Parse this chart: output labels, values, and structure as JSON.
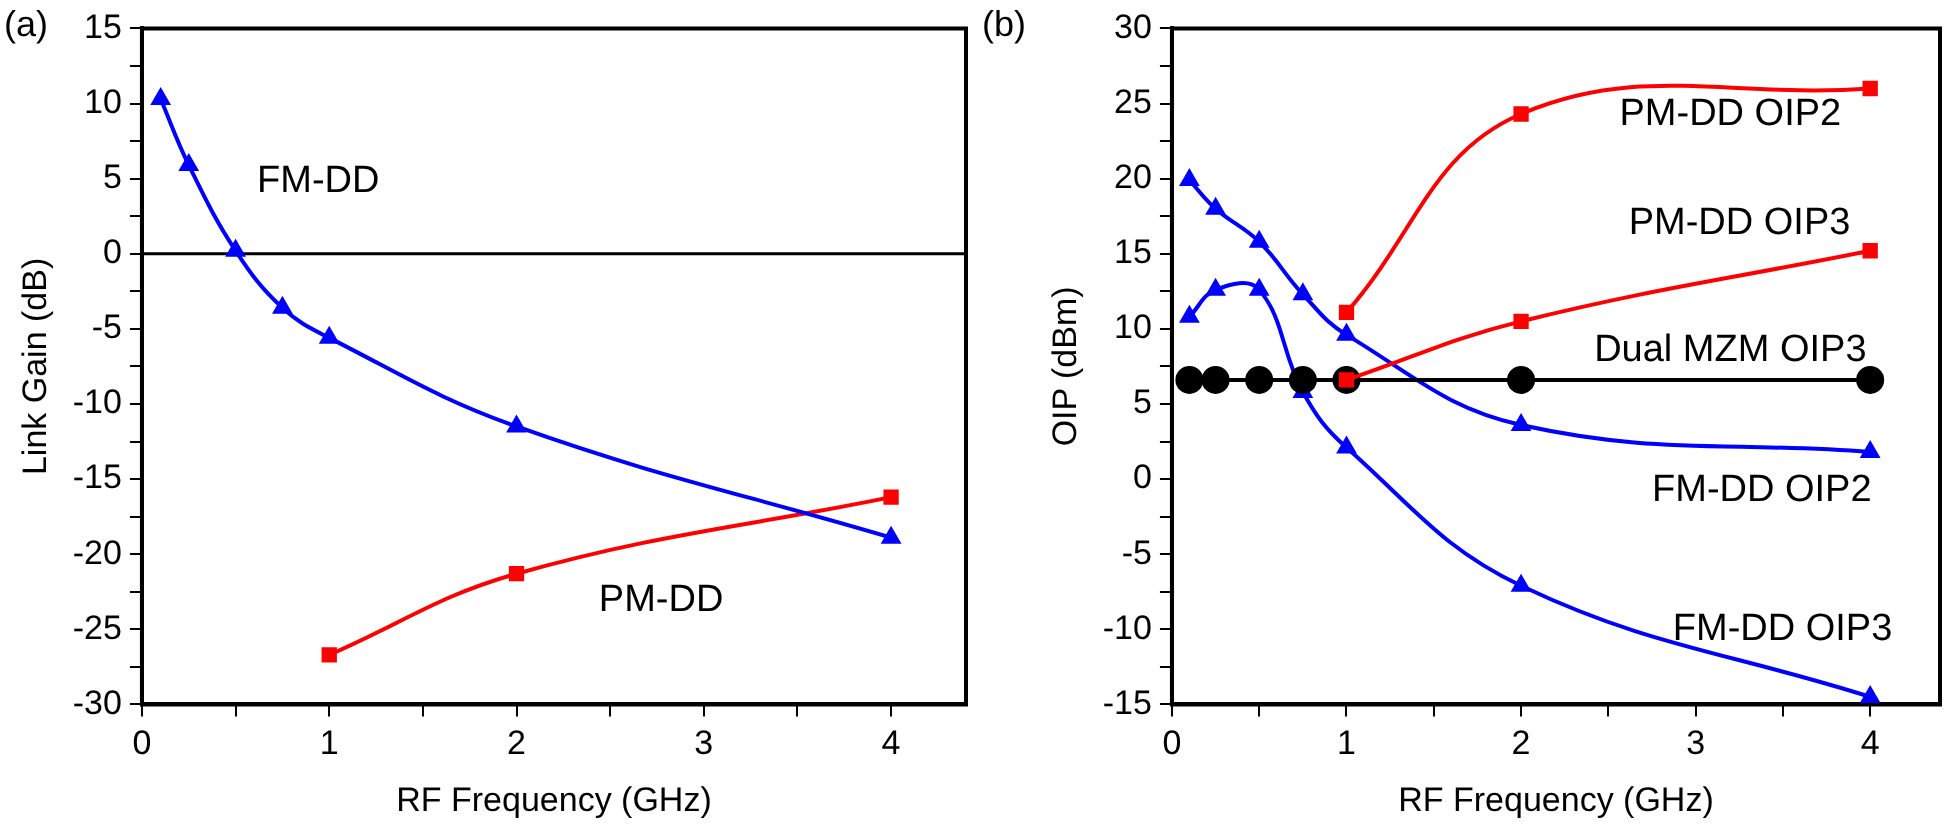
{
  "chart_data": [
    {
      "type": "line",
      "title": "(a)",
      "xlabel": "RF Frequency (GHz)",
      "ylabel": "Link Gain (dB)",
      "xlim": [
        0,
        4.4
      ],
      "xticks": [
        0,
        {
          "value": 0.5,
          "label": null
        },
        1,
        {
          "value": 1.5,
          "label": null
        },
        2,
        {
          "value": 2.5,
          "label": null
        },
        3,
        {
          "value": 3.5,
          "label": null
        },
        4
      ],
      "ylim": [
        -30,
        15
      ],
      "yticks": [
        -30,
        {
          "value": -27.5,
          "label": null
        },
        -25,
        {
          "value": -22.5,
          "label": null
        },
        -20,
        {
          "value": -17.5,
          "label": null
        },
        -15,
        {
          "value": -12.5,
          "label": null
        },
        -10,
        {
          "value": -7.5,
          "label": null
        },
        -5,
        {
          "value": -2.5,
          "label": null
        },
        0,
        {
          "value": 2.5,
          "label": null
        },
        5,
        {
          "value": 7.5,
          "label": null
        },
        10,
        {
          "value": 12.5,
          "label": null
        },
        15
      ],
      "legend": false,
      "series": [
        {
          "name": "FM-DD",
          "color": "#0000ff",
          "marker": "triangle",
          "x": [
            0.1,
            0.25,
            0.5,
            0.75,
            1,
            2,
            4
          ],
          "values": [
            10.3,
            5.9,
            0.2,
            -3.6,
            -5.6,
            -11.5,
            -18.9
          ]
        },
        {
          "name": "PM-DD",
          "color": "#ff0000",
          "marker": "square",
          "x": [
            1,
            2,
            4
          ],
          "values": [
            -26.7,
            -21.3,
            -16.2
          ]
        }
      ],
      "ref_lines": [
        {
          "axis": "y",
          "value": 0,
          "color": "#000000"
        }
      ]
    },
    {
      "type": "line",
      "title": "(b)",
      "xlabel": "RF Frequency (GHz)",
      "ylabel": "OIP (dBm)",
      "xlim": [
        0,
        4.4
      ],
      "xticks": [
        0,
        {
          "value": 0.5,
          "label": null
        },
        1,
        {
          "value": 1.5,
          "label": null
        },
        2,
        {
          "value": 2.5,
          "label": null
        },
        3,
        {
          "value": 3.5,
          "label": null
        },
        4
      ],
      "ylim": [
        -15,
        30
      ],
      "yticks": [
        -15,
        {
          "value": -12.5,
          "label": null
        },
        -10,
        {
          "value": -7.5,
          "label": null
        },
        -5,
        {
          "value": -2.5,
          "label": null
        },
        0,
        {
          "value": 2.5,
          "label": null
        },
        5,
        {
          "value": 7.5,
          "label": null
        },
        10,
        {
          "value": 12.5,
          "label": null
        },
        15,
        {
          "value": 17.5,
          "label": null
        },
        20,
        {
          "value": 22.5,
          "label": null
        },
        25,
        {
          "value": 27.5,
          "label": null
        },
        30
      ],
      "legend": false,
      "series": [
        {
          "name": "PM-DD OIP2",
          "color": "#ff0000",
          "marker": "square",
          "x": [
            1,
            2,
            4
          ],
          "values": [
            11.1,
            24.3,
            26.0
          ]
        },
        {
          "name": "PM-DD OIP3",
          "color": "#ff0000",
          "marker": "square",
          "x": [
            1,
            2,
            4
          ],
          "values": [
            6.6,
            10.5,
            15.2
          ]
        },
        {
          "name": "Dual MZM OIP3",
          "color": "#000000",
          "marker": "circle",
          "x": [
            0.1,
            0.25,
            0.5,
            0.75,
            1,
            2,
            4
          ],
          "values": [
            6.6,
            6.6,
            6.6,
            6.6,
            6.6,
            6.6,
            6.6
          ]
        },
        {
          "name": "FM-DD OIP2",
          "color": "#0000ff",
          "marker": "triangle",
          "x": [
            0.1,
            0.25,
            0.5,
            0.75,
            1,
            2,
            4
          ],
          "values": [
            19.9,
            18.0,
            15.8,
            12.3,
            9.6,
            3.6,
            1.8
          ]
        },
        {
          "name": "FM-DD OIP3",
          "color": "#0000ff",
          "marker": "triangle",
          "x": [
            0.1,
            0.25,
            0.5,
            0.75,
            1,
            2,
            4
          ],
          "values": [
            10.8,
            12.6,
            12.6,
            5.8,
            2.1,
            -7.1,
            -14.5
          ]
        }
      ]
    }
  ]
}
